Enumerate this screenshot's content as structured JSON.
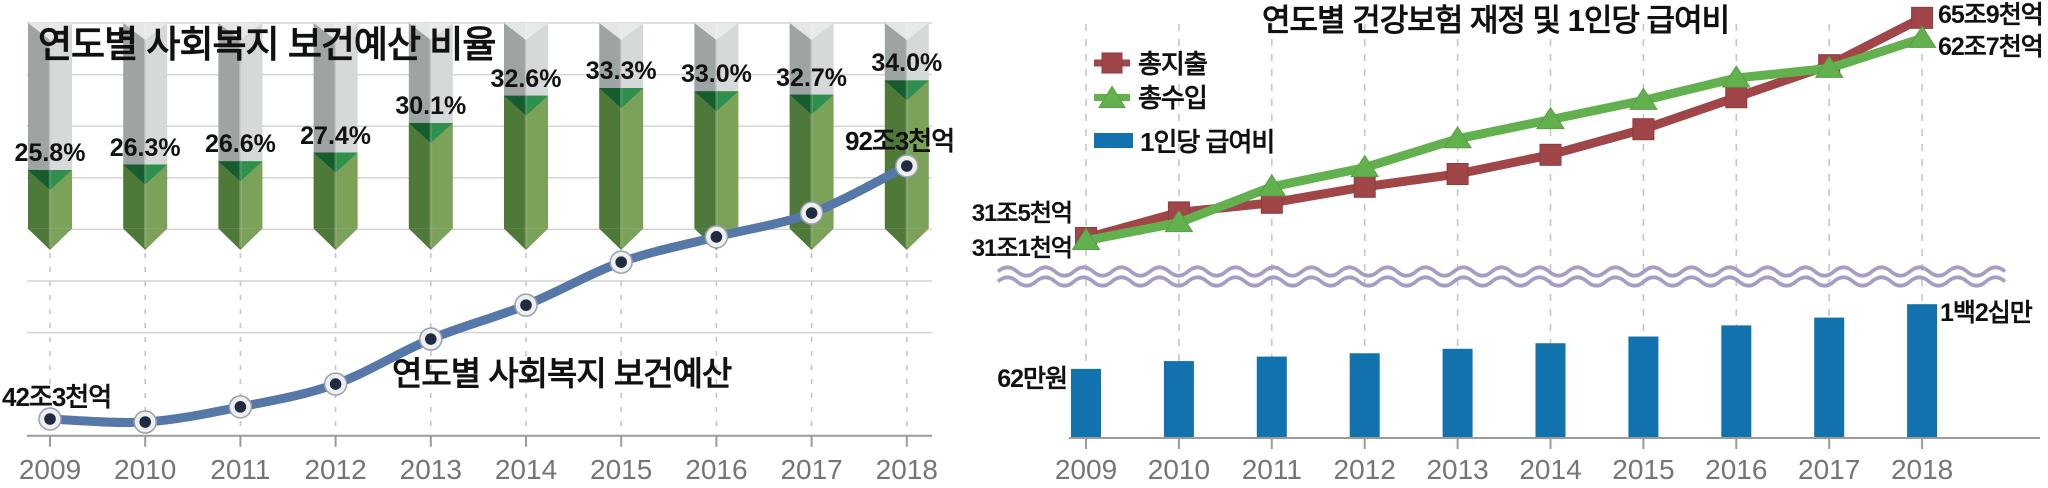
{
  "colors": {
    "expenditure_red": "#A04548",
    "expenditure_red_dark": "#8E3B3E",
    "revenue_green": "#63B14E",
    "revenue_green_dark": "#55A043",
    "benefit_blue": "#1272AE",
    "budget_line_blue": "#5578A9",
    "marker_ring": "#EFEFEF",
    "marker_ring_stroke": "#97A1AE",
    "marker_core_navy": "#202A41",
    "pencil_gray_dark": "#9EA4A4",
    "pencil_gray_light": "#D6D9D9",
    "pencil_gray_notch": "#E9EBEB",
    "pencil_green_dark": "#4F7938",
    "pencil_green_light": "#7CA25A",
    "pencil_green_notch_dark": "#155C2F",
    "pencil_green_notch_light": "#2F8F4C",
    "wave_purple": "#A89CC4",
    "grid_gray": "#D4D4D4",
    "axis_gray": "#9B9B9B",
    "dash_gray": "#C6C6C6",
    "year_text_gray": "#757575",
    "text_black": "#111111"
  },
  "chart_data": [
    {
      "id": "welfare-health-budget-ratio",
      "type": "bar",
      "title": "연도별 사회복지 보건예산 비율",
      "categories": [
        "2009",
        "2010",
        "2011",
        "2012",
        "2013",
        "2014",
        "2015",
        "2016",
        "2017",
        "2018"
      ],
      "values": [
        25.8,
        26.3,
        26.6,
        27.4,
        30.1,
        32.6,
        33.3,
        33.0,
        32.7,
        34.0
      ],
      "unit": "%",
      "bar_style": "hanging-pencil",
      "grid": "horizontal",
      "legend_position": "none"
    },
    {
      "id": "welfare-health-budget-amount",
      "type": "line",
      "title": "연도별 사회복지 보건예산",
      "categories": [
        "2009",
        "2010",
        "2011",
        "2012",
        "2013",
        "2014",
        "2015",
        "2016",
        "2017",
        "2018"
      ],
      "values": [
        42.3,
        41.7,
        44.7,
        49.2,
        58.1,
        64.8,
        73.3,
        78.3,
        83.0,
        92.3
      ],
      "unit": "조원",
      "labels": {
        "first": "42조3천억",
        "last": "92조3천억"
      }
    },
    {
      "id": "health-insurance-finance",
      "type": "line",
      "title": "연도별 건강보험 재정 및 1인당 급여비",
      "categories": [
        "2009",
        "2010",
        "2011",
        "2012",
        "2013",
        "2014",
        "2015",
        "2016",
        "2017",
        "2018"
      ],
      "unit": "조원",
      "series": [
        {
          "name": "총지출",
          "marker": "square",
          "values": [
            31.5,
            35.5,
            37.0,
            39.5,
            41.5,
            44.5,
            48.5,
            53.5,
            58.5,
            65.9
          ],
          "start_label": "31조5천억",
          "end_label": "65조9천억"
        },
        {
          "name": "총수입",
          "marker": "triangle",
          "values": [
            31.1,
            33.9,
            39.5,
            42.5,
            47.0,
            50.0,
            53.0,
            56.5,
            58.0,
            62.7
          ],
          "start_label": "31조1천억",
          "end_label": "62조7천억"
        }
      ]
    },
    {
      "id": "per-capita-benefit",
      "type": "bar",
      "name": "1인당 급여비",
      "categories": [
        "2009",
        "2010",
        "2011",
        "2012",
        "2013",
        "2014",
        "2015",
        "2016",
        "2017",
        "2018"
      ],
      "values": [
        62,
        69,
        73,
        76,
        80,
        85,
        91,
        101,
        108,
        120
      ],
      "unit": "만원",
      "labels": {
        "first": "62만원",
        "last": "1백2십만"
      }
    }
  ]
}
